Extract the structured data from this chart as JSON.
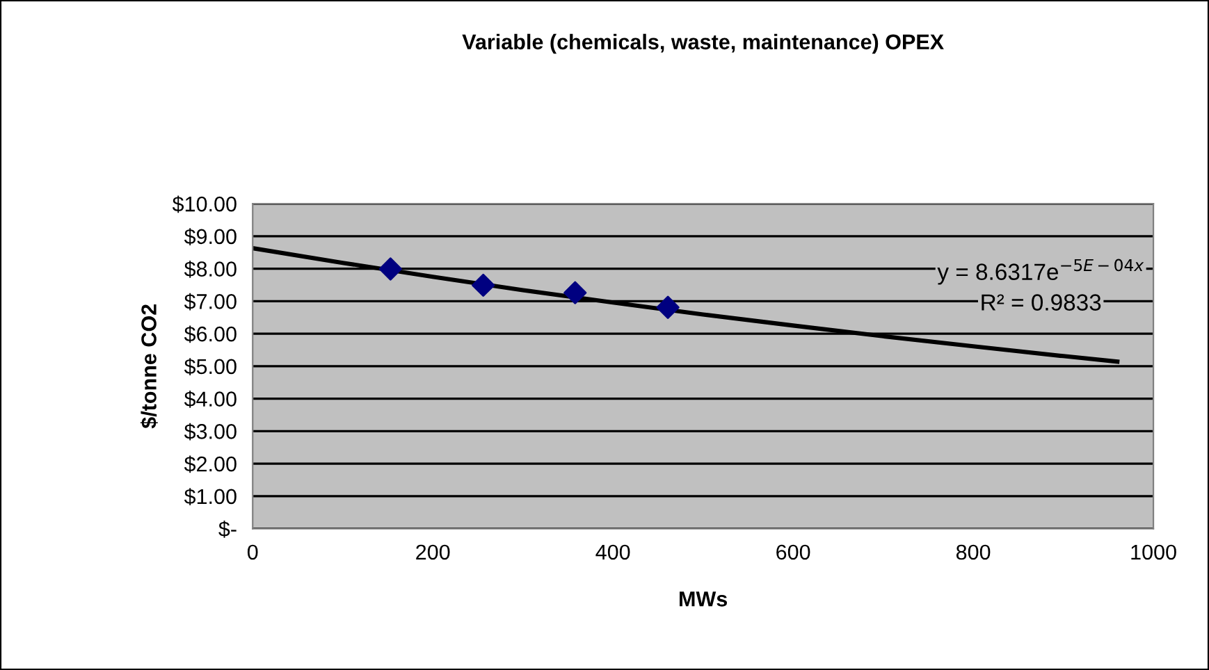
{
  "chart_data": {
    "type": "scatter",
    "title": "Variable (chemicals, waste, maintenance) OPEX",
    "xlabel": "MWs",
    "ylabel": "$/tonne CO2",
    "series": [
      {
        "color": "#000080",
        "marker": "diamond",
        "x": [
          153,
          256,
          358,
          461
        ],
        "values": [
          7.99,
          7.49,
          7.26,
          6.81
        ]
      },
      {
        "type": "line",
        "marker": "none",
        "color": "#000000",
        "x": [
          0,
          100,
          200,
          300,
          400,
          500,
          600,
          700,
          800,
          900,
          960
        ],
        "values": [
          8.63,
          8.18,
          7.75,
          7.34,
          6.96,
          6.59,
          6.25,
          5.92,
          5.61,
          5.31,
          5.14
        ]
      }
    ],
    "annotations": [
      "y = 8.6317e$^{−5E−04x}$",
      "R² = 0.9833"
    ],
    "xlim": [
      0,
      1000
    ],
    "xticks": [
      0,
      200,
      400,
      600,
      800,
      1000
    ],
    "ylim": [
      0,
      10
    ],
    "yticks": [
      {
        "value": 0,
        "label": "$-"
      },
      {
        "value": 1,
        "label": "$1.00"
      },
      {
        "value": 2,
        "label": "$2.00"
      },
      {
        "value": 3,
        "label": "$3.00"
      },
      {
        "value": 4,
        "label": "$4.00"
      },
      {
        "value": 5,
        "label": "$5.00"
      },
      {
        "value": 6,
        "label": "$6.00"
      },
      {
        "value": 7,
        "label": "$7.00"
      },
      {
        "value": 8,
        "label": "$8.00"
      },
      {
        "value": 9,
        "label": "$9.00"
      },
      {
        "value": 10,
        "label": "$10.00"
      }
    ],
    "grid": "y",
    "legend": false
  }
}
